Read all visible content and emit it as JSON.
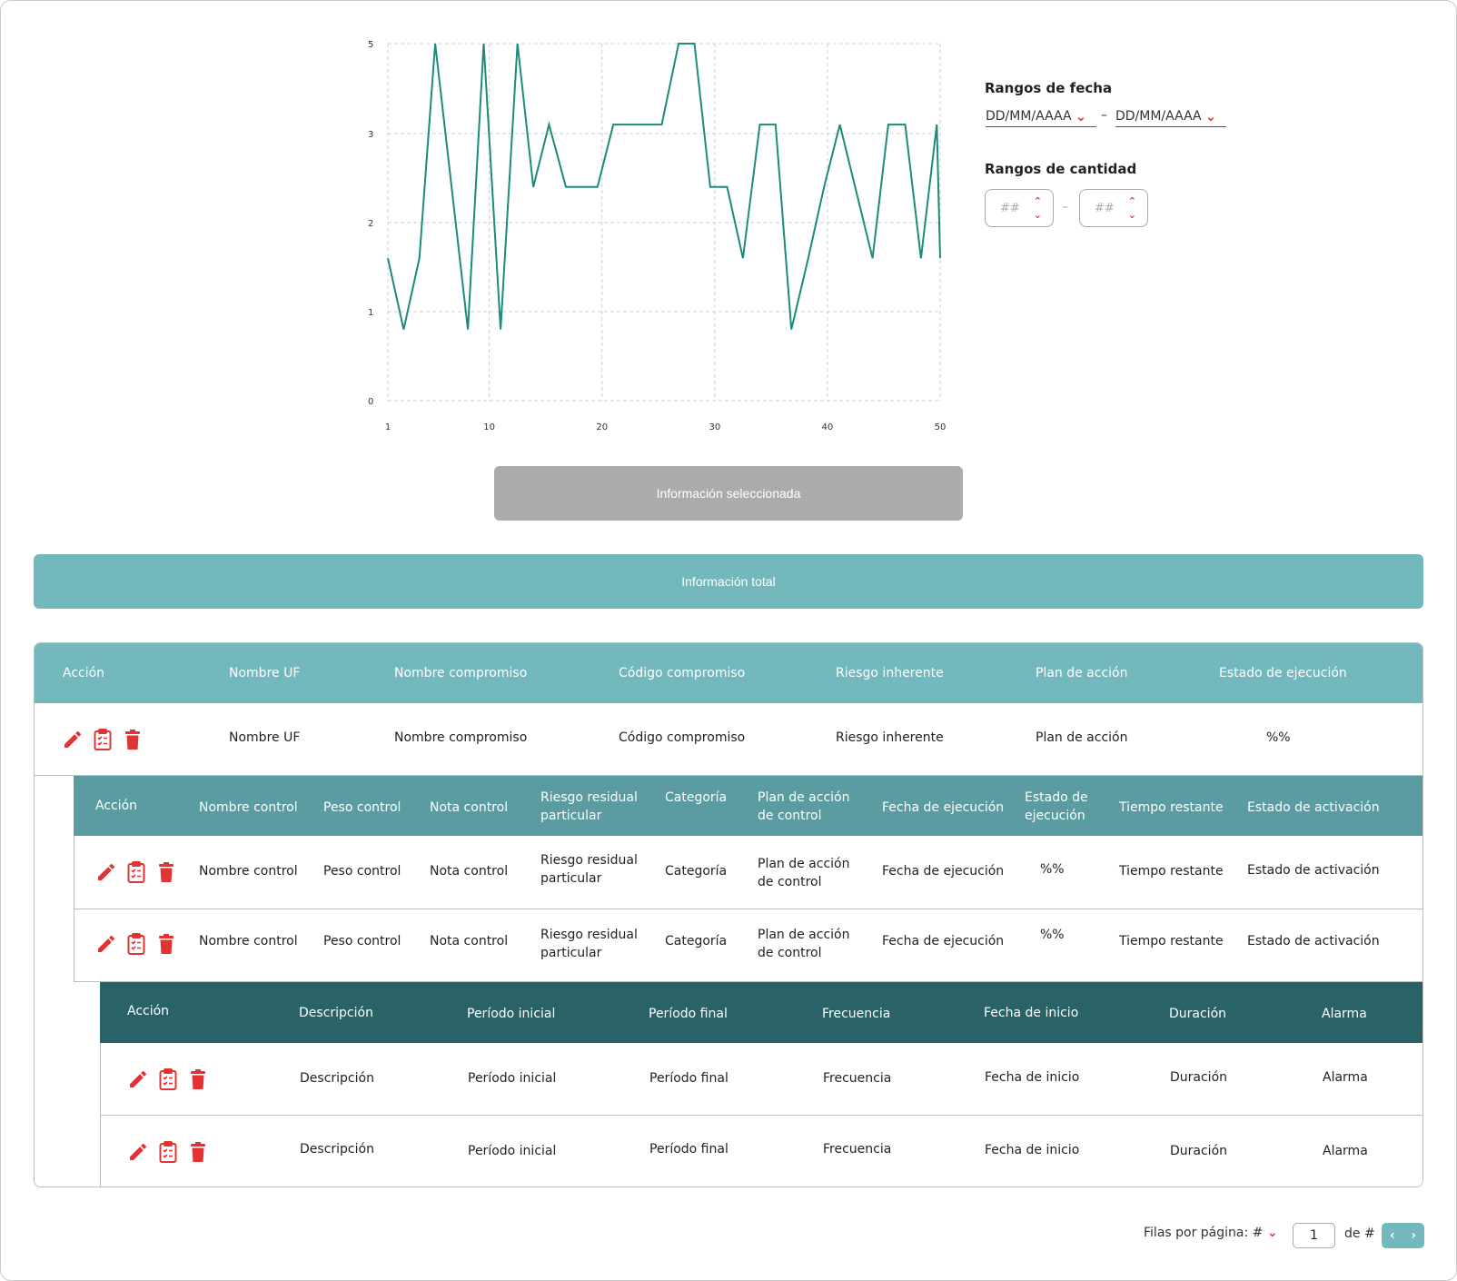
{
  "chart_data": {
    "type": "line",
    "color": "#1d8a7a",
    "x_ticks": [
      1,
      10,
      20,
      30,
      40,
      50
    ],
    "y_ticks": [
      0,
      1,
      2,
      3,
      5
    ],
    "xlim": [
      1,
      50
    ],
    "grid": true,
    "series": [
      {
        "x": [
          1,
          2.4,
          3.8,
          5.2,
          8.1,
          9.5,
          11,
          12.5,
          13.9,
          15.3,
          16.8,
          18.2,
          19.6,
          21,
          25.3,
          26.8,
          28.2,
          29.6,
          31.1,
          32.5,
          34,
          35.4,
          36.8,
          38.3,
          39.7,
          41.1,
          44,
          45.4,
          46.9,
          48.3,
          49.7,
          51.2
        ],
        "y": [
          1.6,
          0.8,
          1.6,
          5,
          0.8,
          5,
          0.8,
          5,
          2.4,
          3.2,
          2.4,
          2.4,
          2.4,
          3.2,
          3.2,
          5,
          5,
          2.4,
          2.4,
          1.6,
          3.2,
          3.2,
          0.8,
          1.6,
          2.4,
          3.2,
          1.6,
          3.2,
          3.2,
          1.6,
          3.2,
          1.6
        ]
      }
    ]
  },
  "filters": {
    "date_title": "Rangos de fecha",
    "date_from": "DD/MM/AAAA",
    "date_to": "DD/MM/AAAA",
    "date_separator": "–",
    "qty_title": "Rangos de cantidad",
    "qty_from": "##",
    "qty_to": "##",
    "qty_separator": "–"
  },
  "buttons": {
    "selected": "Información seleccionada",
    "total": "Información total"
  },
  "level1": {
    "headers": [
      "Acción",
      "Nombre UF",
      "Nombre compromiso",
      "Código compromiso",
      "Riesgo inherente",
      "Plan de acción",
      "Estado de ejecución"
    ],
    "rows": [
      [
        "Nombre UF",
        "Nombre compromiso",
        "Código compromiso",
        "Riesgo inherente",
        "Plan de acción",
        "%%"
      ]
    ]
  },
  "level2": {
    "headers": [
      "Acción",
      "Nombre control",
      "Peso control",
      "Nota control",
      "Riesgo residual particular",
      "Categoría",
      "Plan de acción de control",
      "Fecha de ejecución",
      "Estado de ejecución",
      "Tiempo restante",
      "Estado de activación"
    ],
    "rows": [
      [
        "Nombre control",
        "Peso control",
        "Nota control",
        "Riesgo residual particular",
        "Categoría",
        "Plan de acción de control",
        "Fecha de ejecución",
        "%%",
        "Tiempo restante",
        "Estado de activación"
      ],
      [
        "Nombre control",
        "Peso control",
        "Nota control",
        "Riesgo residual particular",
        "Categoría",
        "Plan de acción de control",
        "Fecha de ejecución",
        "%%",
        "Tiempo restante",
        "Estado de activación"
      ]
    ]
  },
  "level3": {
    "headers": [
      "Acción",
      "Descripción",
      "Período inicial",
      "Período final",
      "Frecuencia",
      "Fecha de inicio",
      "Duración",
      "Alarma"
    ],
    "rows": [
      [
        "Descripción",
        "Período inicial",
        "Período final",
        "Frecuencia",
        "Fecha de inicio",
        "Duración",
        "Alarma"
      ],
      [
        "Descripción",
        "Período inicial",
        "Período final",
        "Frecuencia",
        "Fecha de inicio",
        "Duración",
        "Alarma"
      ]
    ]
  },
  "icons": {
    "edit": "pencil-icon",
    "review": "clipboard-check-icon",
    "delete": "trash-icon",
    "color": "#e03434"
  },
  "pagination": {
    "rows_per_page": "Filas por página: #",
    "page": "1",
    "of": "de #"
  }
}
